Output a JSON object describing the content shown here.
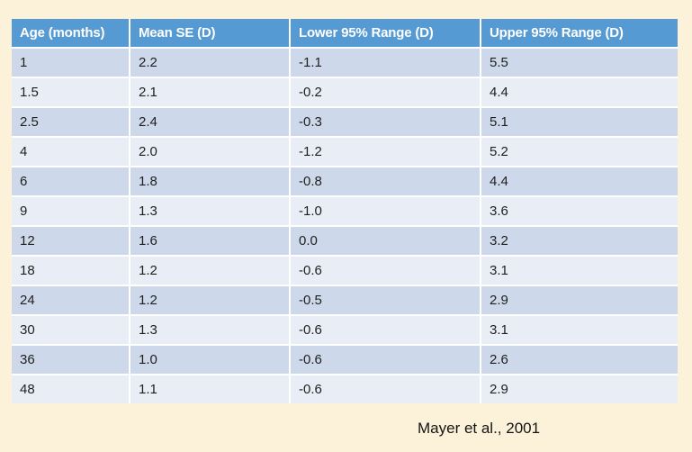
{
  "page": {
    "background_color": "#FCF2D9",
    "citation": "Mayer et al., 2001"
  },
  "table_style": {
    "header_bg": "#559AD2",
    "header_text_color": "#FFFFFF",
    "band_dark_bg": "#CDD9EA",
    "band_light_bg": "#E9EEF6",
    "separator_color": "#FFFFFF"
  },
  "chart_data": {
    "type": "table",
    "title": "",
    "columns": [
      "Age (months)",
      "Mean SE (D)",
      "Lower 95% Range (D)",
      "Upper 95% Range (D)"
    ],
    "rows": [
      [
        "1",
        "2.2",
        "-1.1",
        "5.5"
      ],
      [
        "1.5",
        "2.1",
        "-0.2",
        "4.4"
      ],
      [
        "2.5",
        "2.4",
        "-0.3",
        "5.1"
      ],
      [
        "4",
        "2.0",
        "-1.2",
        "5.2"
      ],
      [
        "6",
        "1.8",
        "-0.8",
        "4.4"
      ],
      [
        "9",
        "1.3",
        "-1.0",
        "3.6"
      ],
      [
        "12",
        "1.6",
        "0.0",
        "3.2"
      ],
      [
        "18",
        "1.2",
        "-0.6",
        "3.1"
      ],
      [
        "24",
        "1.2",
        "-0.5",
        "2.9"
      ],
      [
        "30",
        "1.3",
        "-0.6",
        "3.1"
      ],
      [
        "36",
        "1.0",
        "-0.6",
        "2.6"
      ],
      [
        "48",
        "1.1",
        "-0.6",
        "2.9"
      ]
    ],
    "series": [
      {
        "name": "Age (months)",
        "values": [
          1,
          1.5,
          2.5,
          4,
          6,
          9,
          12,
          18,
          24,
          30,
          36,
          48
        ]
      },
      {
        "name": "Mean SE (D)",
        "values": [
          2.2,
          2.1,
          2.4,
          2.0,
          1.8,
          1.3,
          1.6,
          1.2,
          1.2,
          1.3,
          1.0,
          1.1
        ]
      },
      {
        "name": "Lower 95% Range (D)",
        "values": [
          -1.1,
          -0.2,
          -0.3,
          -1.2,
          -0.8,
          -1.0,
          0.0,
          -0.6,
          -0.5,
          -0.6,
          -0.6,
          -0.6
        ]
      },
      {
        "name": "Upper 95% Range (D)",
        "values": [
          5.5,
          4.4,
          5.1,
          5.2,
          4.4,
          3.6,
          3.2,
          3.1,
          2.9,
          3.1,
          2.6,
          2.9
        ]
      }
    ]
  }
}
